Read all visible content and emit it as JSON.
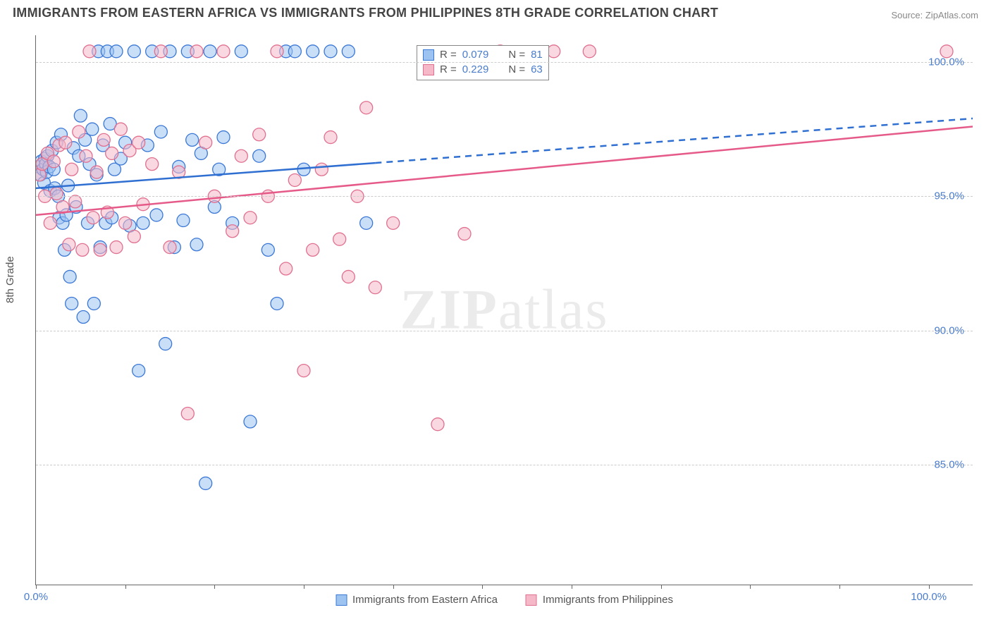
{
  "title": "IMMIGRANTS FROM EASTERN AFRICA VS IMMIGRANTS FROM PHILIPPINES 8TH GRADE CORRELATION CHART",
  "source": "Source: ZipAtlas.com",
  "watermark": {
    "bold": "ZIP",
    "light": "atlas"
  },
  "chart": {
    "type": "scatter",
    "x_min": 0,
    "x_max": 105,
    "y_min": 80.5,
    "y_max": 101,
    "background_color": "#ffffff",
    "grid_color": "#cccccc",
    "grid_dash": true,
    "axis_color": "#666666",
    "ylabel": "8th Grade",
    "ylabel_fontsize": 15,
    "yticks": [
      85.0,
      90.0,
      95.0,
      100.0
    ],
    "ytick_labels": [
      "85.0%",
      "90.0%",
      "95.0%",
      "100.0%"
    ],
    "ytick_color": "#4a7ccc",
    "xticks": [
      0,
      10,
      20,
      30,
      40,
      50,
      60,
      70,
      80,
      90,
      100
    ],
    "xtick_labels_shown": {
      "0": "0.0%",
      "100": "100.0%"
    },
    "marker_radius": 9,
    "marker_opacity": 0.55,
    "marker_stroke_width": 1.3,
    "series": [
      {
        "id": "eastern_africa",
        "label": "Immigrants from Eastern Africa",
        "fill": "#9dc3f0",
        "stroke": "#3b78d6",
        "R": "0.079",
        "N": "81",
        "trend": {
          "y_at_xmin": 95.3,
          "y_at_xmax": 97.9,
          "solid_until_x": 38,
          "color": "#2f6fd1",
          "width": 2.5,
          "dash": "9,7"
        },
        "points": [
          [
            0.3,
            96.1
          ],
          [
            0.5,
            95.8
          ],
          [
            0.6,
            96.3
          ],
          [
            0.8,
            96.0
          ],
          [
            0.9,
            95.5
          ],
          [
            1.0,
            96.4
          ],
          [
            1.1,
            96.2
          ],
          [
            1.2,
            95.9
          ],
          [
            1.3,
            96.5
          ],
          [
            1.5,
            96.1
          ],
          [
            1.6,
            95.2
          ],
          [
            1.8,
            96.7
          ],
          [
            2.0,
            96.0
          ],
          [
            2.1,
            95.3
          ],
          [
            2.3,
            97.0
          ],
          [
            2.5,
            95.0
          ],
          [
            2.6,
            94.2
          ],
          [
            2.8,
            97.3
          ],
          [
            3.0,
            94.0
          ],
          [
            3.2,
            93.0
          ],
          [
            3.4,
            94.3
          ],
          [
            3.6,
            95.4
          ],
          [
            3.8,
            92.0
          ],
          [
            4.0,
            91.0
          ],
          [
            4.2,
            96.8
          ],
          [
            4.5,
            94.6
          ],
          [
            4.8,
            96.5
          ],
          [
            5.0,
            98.0
          ],
          [
            5.3,
            90.5
          ],
          [
            5.5,
            97.1
          ],
          [
            5.8,
            94.0
          ],
          [
            6.0,
            96.2
          ],
          [
            6.3,
            97.5
          ],
          [
            6.5,
            91.0
          ],
          [
            6.8,
            95.8
          ],
          [
            7.0,
            100.4
          ],
          [
            7.2,
            93.1
          ],
          [
            7.5,
            96.9
          ],
          [
            7.8,
            94.0
          ],
          [
            8.0,
            100.4
          ],
          [
            8.3,
            97.7
          ],
          [
            8.5,
            94.2
          ],
          [
            8.8,
            96.0
          ],
          [
            9.0,
            100.4
          ],
          [
            9.5,
            96.4
          ],
          [
            10.0,
            97.0
          ],
          [
            10.5,
            93.9
          ],
          [
            11.0,
            100.4
          ],
          [
            11.5,
            88.5
          ],
          [
            12.0,
            94.0
          ],
          [
            12.5,
            96.9
          ],
          [
            13.0,
            100.4
          ],
          [
            13.5,
            94.3
          ],
          [
            14.0,
            97.4
          ],
          [
            14.5,
            89.5
          ],
          [
            15.0,
            100.4
          ],
          [
            15.5,
            93.1
          ],
          [
            16.0,
            96.1
          ],
          [
            16.5,
            94.1
          ],
          [
            17.0,
            100.4
          ],
          [
            17.5,
            97.1
          ],
          [
            18.0,
            93.2
          ],
          [
            18.5,
            96.6
          ],
          [
            19.0,
            84.3
          ],
          [
            19.5,
            100.4
          ],
          [
            20.0,
            94.6
          ],
          [
            20.5,
            96.0
          ],
          [
            21.0,
            97.2
          ],
          [
            22.0,
            94.0
          ],
          [
            23.0,
            100.4
          ],
          [
            24.0,
            86.6
          ],
          [
            25.0,
            96.5
          ],
          [
            26.0,
            93.0
          ],
          [
            27.0,
            91.0
          ],
          [
            28.0,
            100.4
          ],
          [
            29.0,
            100.4
          ],
          [
            30.0,
            96.0
          ],
          [
            31.0,
            100.4
          ],
          [
            33.0,
            100.4
          ],
          [
            35.0,
            100.4
          ],
          [
            37.0,
            94.0
          ]
        ]
      },
      {
        "id": "philippines",
        "label": "Immigrants from Philippines",
        "fill": "#f5b8c8",
        "stroke": "#e07090",
        "R": "0.229",
        "N": "63",
        "trend": {
          "y_at_xmin": 94.3,
          "y_at_xmax": 97.6,
          "solid_until_x": 105,
          "color": "#e55a88",
          "width": 2.5
        },
        "points": [
          [
            0.4,
            95.8
          ],
          [
            0.7,
            96.2
          ],
          [
            1.0,
            95.0
          ],
          [
            1.3,
            96.6
          ],
          [
            1.6,
            94.0
          ],
          [
            2.0,
            96.3
          ],
          [
            2.3,
            95.1
          ],
          [
            2.6,
            96.9
          ],
          [
            3.0,
            94.6
          ],
          [
            3.3,
            97.0
          ],
          [
            3.7,
            93.2
          ],
          [
            4.0,
            96.0
          ],
          [
            4.4,
            94.8
          ],
          [
            4.8,
            97.4
          ],
          [
            5.2,
            93.0
          ],
          [
            5.6,
            96.5
          ],
          [
            6.0,
            100.4
          ],
          [
            6.4,
            94.2
          ],
          [
            6.8,
            95.9
          ],
          [
            7.2,
            93.0
          ],
          [
            7.6,
            97.1
          ],
          [
            8.0,
            94.4
          ],
          [
            8.5,
            96.6
          ],
          [
            9.0,
            93.1
          ],
          [
            9.5,
            97.5
          ],
          [
            10.0,
            94.0
          ],
          [
            10.5,
            96.7
          ],
          [
            11.0,
            93.5
          ],
          [
            11.5,
            97.0
          ],
          [
            12.0,
            94.7
          ],
          [
            13.0,
            96.2
          ],
          [
            14.0,
            100.4
          ],
          [
            15.0,
            93.1
          ],
          [
            16.0,
            95.9
          ],
          [
            17.0,
            86.9
          ],
          [
            18.0,
            100.4
          ],
          [
            19.0,
            97.0
          ],
          [
            20.0,
            95.0
          ],
          [
            21.0,
            100.4
          ],
          [
            22.0,
            93.7
          ],
          [
            23.0,
            96.5
          ],
          [
            24.0,
            94.2
          ],
          [
            25.0,
            97.3
          ],
          [
            26.0,
            95.0
          ],
          [
            27.0,
            100.4
          ],
          [
            28.0,
            92.3
          ],
          [
            29.0,
            95.6
          ],
          [
            30.0,
            88.5
          ],
          [
            31.0,
            93.0
          ],
          [
            32.0,
            96.0
          ],
          [
            33.0,
            97.2
          ],
          [
            34.0,
            93.4
          ],
          [
            35.0,
            92.0
          ],
          [
            36.0,
            95.0
          ],
          [
            37.0,
            98.3
          ],
          [
            38.0,
            91.6
          ],
          [
            40.0,
            94.0
          ],
          [
            45.0,
            86.5
          ],
          [
            48.0,
            93.6
          ],
          [
            52.0,
            100.4
          ],
          [
            58.0,
            100.4
          ],
          [
            62.0,
            100.4
          ],
          [
            102.0,
            100.4
          ]
        ]
      }
    ],
    "legend_bottom": [
      {
        "ref": "eastern_africa"
      },
      {
        "ref": "philippines"
      }
    ],
    "legend_overlay": {
      "rows": [
        {
          "ref": "eastern_africa",
          "R_label": "R =",
          "N_label": "N ="
        },
        {
          "ref": "philippines",
          "R_label": "R =",
          "N_label": "N ="
        }
      ]
    }
  }
}
